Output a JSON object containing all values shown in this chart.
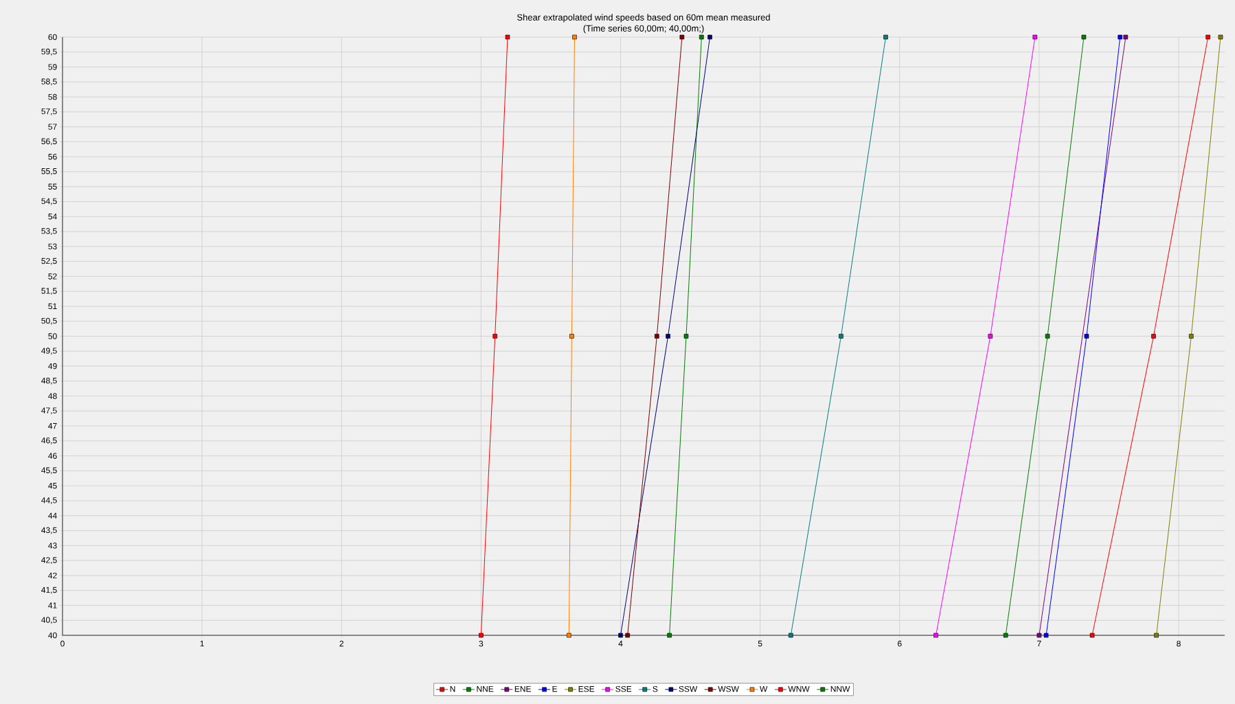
{
  "chart_data": {
    "type": "line",
    "title": "Shear extrapolated wind speeds based on 60m mean measured",
    "subtitle": "(Time series 60,00m; 40,00m;)",
    "series": [
      {
        "name": "N",
        "color": "#ff0000",
        "x": [
          3.0,
          3.1,
          3.19
        ],
        "values": [
          40,
          50,
          60
        ]
      },
      {
        "name": "NNE",
        "color": "#008000",
        "x": [
          4.35,
          4.47,
          4.58
        ],
        "values": [
          40,
          50,
          60
        ]
      },
      {
        "name": "ENE",
        "color": "#800080",
        "x": [
          7.0,
          7.33,
          7.62
        ],
        "values": [
          40,
          null,
          60
        ]
      },
      {
        "name": "E",
        "color": "#0000ff",
        "x": [
          7.05,
          7.34,
          7.58
        ],
        "values": [
          40,
          50,
          60
        ]
      },
      {
        "name": "ESE",
        "color": "#808000",
        "x": [
          7.84,
          8.09,
          8.3
        ],
        "values": [
          40,
          50,
          60
        ]
      },
      {
        "name": "SSE",
        "color": "#ff00ff",
        "x": [
          6.26,
          6.65,
          6.97
        ],
        "values": [
          40,
          50,
          60
        ]
      },
      {
        "name": "S",
        "color": "#008080",
        "x": [
          5.22,
          5.58,
          5.9
        ],
        "values": [
          40,
          50,
          60
        ]
      },
      {
        "name": "SSW",
        "color": "#000080",
        "x": [
          4.0,
          4.34,
          4.64
        ],
        "values": [
          40,
          50,
          60
        ]
      },
      {
        "name": "WSW",
        "color": "#800000",
        "x": [
          4.05,
          4.26,
          4.44
        ],
        "values": [
          40,
          50,
          60
        ]
      },
      {
        "name": "W",
        "color": "#ff8000",
        "x": [
          3.63,
          3.65,
          3.67
        ],
        "values": [
          40,
          50,
          60
        ]
      },
      {
        "name": "WNW",
        "color": "#ff0000",
        "x": [
          7.38,
          7.82,
          8.21
        ],
        "values": [
          40,
          50,
          60
        ]
      },
      {
        "name": "NNW",
        "color": "#008000",
        "x": [
          6.76,
          7.06,
          7.32
        ],
        "values": [
          40,
          50,
          60
        ]
      }
    ],
    "xlim": [
      0,
      8.33
    ],
    "xticks": [
      0,
      1,
      2,
      3,
      4,
      5,
      6,
      7,
      8
    ],
    "ylim": [
      40,
      60
    ],
    "yticks": [
      40,
      {
        "value": 40.5,
        "label": "40,5"
      },
      41,
      {
        "value": 41.5,
        "label": "41,5"
      },
      42,
      {
        "value": 42.5,
        "label": "42,5"
      },
      43,
      {
        "value": 43.5,
        "label": "43,5"
      },
      44,
      {
        "value": 44.5,
        "label": "44,5"
      },
      45,
      {
        "value": 45.5,
        "label": "45,5"
      },
      46,
      {
        "value": 46.5,
        "label": "46,5"
      },
      47,
      {
        "value": 47.5,
        "label": "47,5"
      },
      48,
      {
        "value": 48.5,
        "label": "48,5"
      },
      49,
      {
        "value": 49.5,
        "label": "49,5"
      },
      50,
      {
        "value": 50.5,
        "label": "50,5"
      },
      51,
      {
        "value": 51.5,
        "label": "51,5"
      },
      52,
      {
        "value": 52.5,
        "label": "52,5"
      },
      53,
      {
        "value": 53.5,
        "label": "53,5"
      },
      54,
      {
        "value": 54.5,
        "label": "54,5"
      },
      55,
      {
        "value": 55.5,
        "label": "55,5"
      },
      56,
      {
        "value": 56.5,
        "label": "56,5"
      },
      57,
      {
        "value": 57.5,
        "label": "57,5"
      },
      58,
      {
        "value": 58.5,
        "label": "58,5"
      },
      59,
      {
        "value": 59.5,
        "label": "59,5"
      },
      60
    ],
    "grid": true,
    "legend": "bottom",
    "marker": "square",
    "line_style": "solid"
  }
}
